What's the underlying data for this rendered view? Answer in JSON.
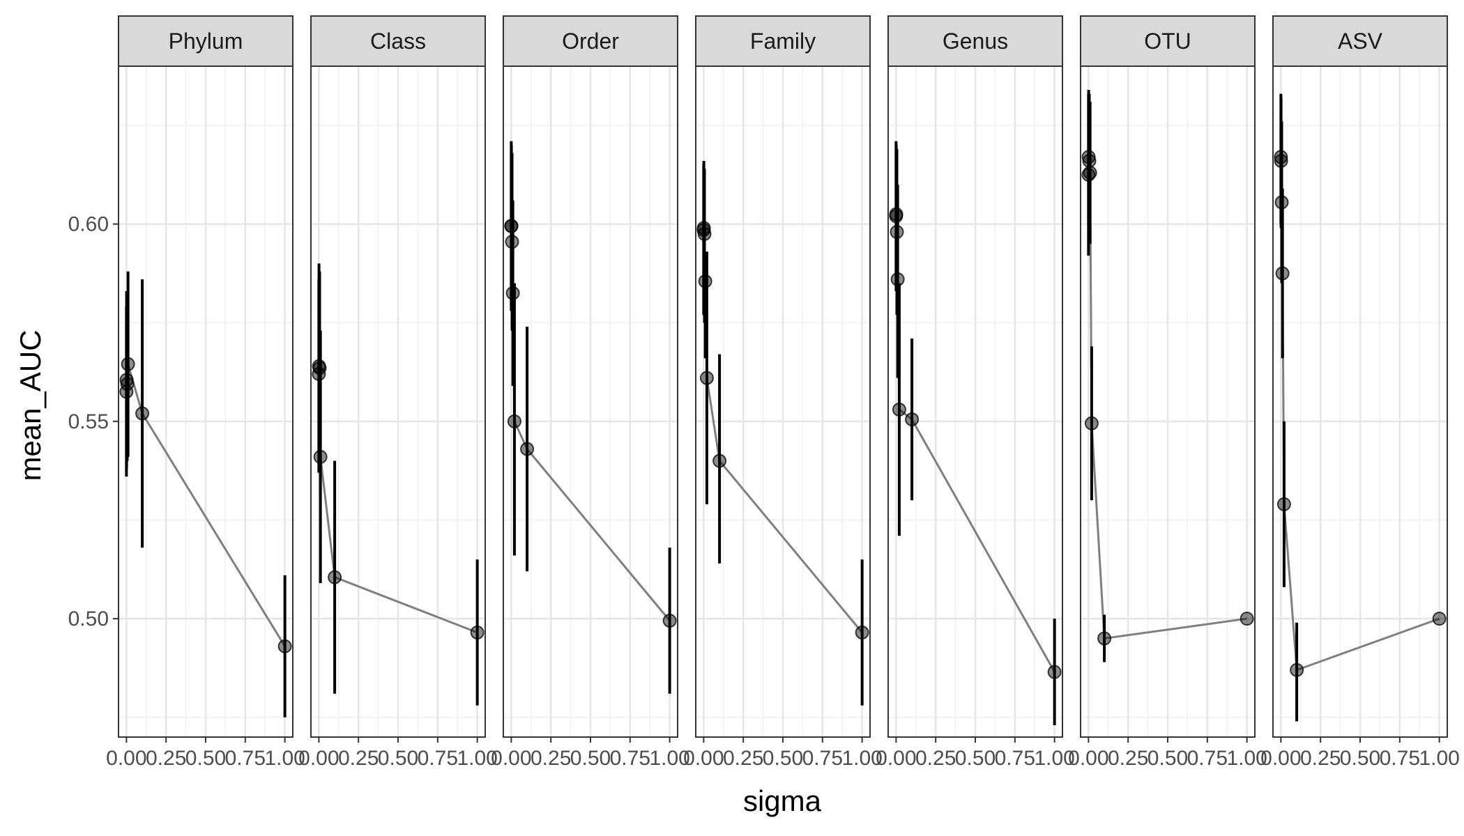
{
  "chart_data": {
    "type": "scatter",
    "x_label": "sigma",
    "y_label": "mean_AUC",
    "x_ticks": [
      0,
      0.25,
      0.5,
      0.75,
      1
    ],
    "x_tick_labels": [
      "0.00",
      "0.25",
      "0.50",
      "0.75",
      "1.00"
    ],
    "y_ticks": [
      0.5,
      0.55,
      0.6
    ],
    "y_tick_labels": [
      "0.50",
      "0.55",
      "0.60"
    ],
    "xlim": [
      -0.05,
      1.05
    ],
    "ylim": [
      0.47,
      0.64
    ],
    "grid": true,
    "facets": [
      {
        "label": "Phylum",
        "points": [
          {
            "x": 0,
            "y": 0.5575,
            "lo": 0.536,
            "hi": 0.579
          },
          {
            "x": 0.001,
            "y": 0.5605,
            "lo": 0.538,
            "hi": 0.583
          },
          {
            "x": 0.005,
            "y": 0.5595,
            "lo": 0.54,
            "hi": 0.58
          },
          {
            "x": 0.01,
            "y": 0.5645,
            "lo": 0.541,
            "hi": 0.588
          },
          {
            "x": 0.1,
            "y": 0.552,
            "lo": 0.518,
            "hi": 0.586
          },
          {
            "x": 1,
            "y": 0.493,
            "lo": 0.475,
            "hi": 0.511
          }
        ]
      },
      {
        "label": "Class",
        "points": [
          {
            "x": 0,
            "y": 0.562,
            "lo": 0.537,
            "hi": 0.586
          },
          {
            "x": 0.001,
            "y": 0.564,
            "lo": 0.538,
            "hi": 0.59
          },
          {
            "x": 0.005,
            "y": 0.5635,
            "lo": 0.54,
            "hi": 0.588
          },
          {
            "x": 0.01,
            "y": 0.541,
            "lo": 0.509,
            "hi": 0.573
          },
          {
            "x": 0.1,
            "y": 0.5105,
            "lo": 0.481,
            "hi": 0.54
          },
          {
            "x": 1,
            "y": 0.4965,
            "lo": 0.478,
            "hi": 0.515
          }
        ]
      },
      {
        "label": "Order",
        "points": [
          {
            "x": 0,
            "y": 0.5995,
            "lo": 0.578,
            "hi": 0.621
          },
          {
            "x": 0.001,
            "y": 0.5995,
            "lo": 0.579,
            "hi": 0.62
          },
          {
            "x": 0.005,
            "y": 0.5955,
            "lo": 0.573,
            "hi": 0.618
          },
          {
            "x": 0.01,
            "y": 0.5825,
            "lo": 0.559,
            "hi": 0.606
          },
          {
            "x": 0.02,
            "y": 0.55,
            "lo": 0.516,
            "hi": 0.585
          },
          {
            "x": 0.1,
            "y": 0.543,
            "lo": 0.512,
            "hi": 0.574
          },
          {
            "x": 1,
            "y": 0.4995,
            "lo": 0.481,
            "hi": 0.518
          }
        ]
      },
      {
        "label": "Family",
        "points": [
          {
            "x": 0,
            "y": 0.5985,
            "lo": 0.577,
            "hi": 0.615
          },
          {
            "x": 0.001,
            "y": 0.599,
            "lo": 0.578,
            "hi": 0.616
          },
          {
            "x": 0.005,
            "y": 0.5975,
            "lo": 0.575,
            "hi": 0.614
          },
          {
            "x": 0.01,
            "y": 0.5855,
            "lo": 0.566,
            "hi": 0.593
          },
          {
            "x": 0.02,
            "y": 0.561,
            "lo": 0.529,
            "hi": 0.593
          },
          {
            "x": 0.1,
            "y": 0.54,
            "lo": 0.514,
            "hi": 0.567
          },
          {
            "x": 1,
            "y": 0.4965,
            "lo": 0.478,
            "hi": 0.515
          }
        ]
      },
      {
        "label": "Genus",
        "points": [
          {
            "x": 0,
            "y": 0.602,
            "lo": 0.583,
            "hi": 0.621
          },
          {
            "x": 0.001,
            "y": 0.6025,
            "lo": 0.584,
            "hi": 0.62
          },
          {
            "x": 0.005,
            "y": 0.598,
            "lo": 0.577,
            "hi": 0.619
          },
          {
            "x": 0.01,
            "y": 0.586,
            "lo": 0.561,
            "hi": 0.61
          },
          {
            "x": 0.02,
            "y": 0.553,
            "lo": 0.521,
            "hi": 0.585
          },
          {
            "x": 0.1,
            "y": 0.5505,
            "lo": 0.53,
            "hi": 0.571
          },
          {
            "x": 1,
            "y": 0.4865,
            "lo": 0.473,
            "hi": 0.5
          }
        ]
      },
      {
        "label": "OTU",
        "points": [
          {
            "x": 0,
            "y": 0.6125,
            "lo": 0.592,
            "hi": 0.633
          },
          {
            "x": 0.001,
            "y": 0.617,
            "lo": 0.6,
            "hi": 0.634
          },
          {
            "x": 0.005,
            "y": 0.616,
            "lo": 0.598,
            "hi": 0.633
          },
          {
            "x": 0.01,
            "y": 0.613,
            "lo": 0.595,
            "hi": 0.631
          },
          {
            "x": 0.02,
            "y": 0.5495,
            "lo": 0.53,
            "hi": 0.569
          },
          {
            "x": 0.1,
            "y": 0.495,
            "lo": 0.489,
            "hi": 0.501
          },
          {
            "x": 1,
            "y": 0.5,
            "lo": 0.5,
            "hi": 0.5
          }
        ]
      },
      {
        "label": "ASV",
        "points": [
          {
            "x": 0,
            "y": 0.617,
            "lo": 0.6,
            "hi": 0.633
          },
          {
            "x": 0.001,
            "y": 0.616,
            "lo": 0.599,
            "hi": 0.632
          },
          {
            "x": 0.005,
            "y": 0.6055,
            "lo": 0.585,
            "hi": 0.626
          },
          {
            "x": 0.01,
            "y": 0.5875,
            "lo": 0.566,
            "hi": 0.609
          },
          {
            "x": 0.02,
            "y": 0.529,
            "lo": 0.508,
            "hi": 0.55
          },
          {
            "x": 0.1,
            "y": 0.487,
            "lo": 0.474,
            "hi": 0.499
          },
          {
            "x": 1,
            "y": 0.5,
            "lo": 0.5,
            "hi": 0.5
          }
        ]
      }
    ]
  }
}
